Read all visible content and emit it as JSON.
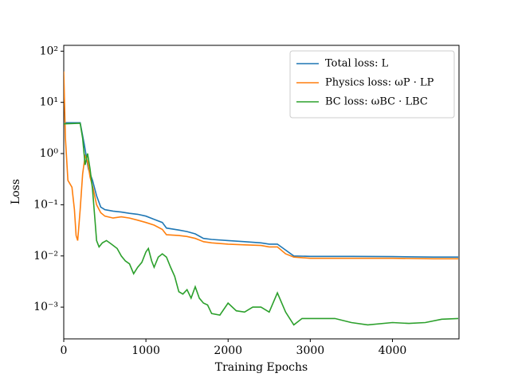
{
  "chart_data": {
    "type": "line",
    "log_y": true,
    "legend": "upper right",
    "xlabel": "Training Epochs",
    "ylabel": "Loss",
    "xlim": [
      0,
      4810
    ],
    "xticks": [
      0,
      1000,
      2000,
      3000,
      4000
    ],
    "ylim": [
      0.00024,
      130
    ],
    "yticks": [
      {
        "value": 0.001,
        "label": "10⁻³"
      },
      {
        "value": 0.01,
        "label": "10⁻²"
      },
      {
        "value": 0.1,
        "label": "10⁻¹"
      },
      {
        "value": 1,
        "label": "10⁰"
      },
      {
        "value": 10,
        "label": "10¹"
      },
      {
        "value": 100,
        "label": "10²"
      }
    ],
    "series": [
      {
        "name": "Total loss: L",
        "color": "#1f77b4",
        "x": [
          0,
          200,
          250,
          300,
          350,
          400,
          450,
          500,
          600,
          700,
          800,
          900,
          1000,
          1100,
          1200,
          1250,
          1400,
          1500,
          1600,
          1700,
          1800,
          2000,
          2200,
          2400,
          2500,
          2600,
          2700,
          2800,
          3000,
          3500,
          4000,
          4500,
          4800
        ],
        "values": [
          4,
          4,
          1.5,
          0.5,
          0.3,
          0.15,
          0.09,
          0.08,
          0.075,
          0.072,
          0.068,
          0.065,
          0.06,
          0.052,
          0.045,
          0.035,
          0.032,
          0.03,
          0.027,
          0.022,
          0.021,
          0.02,
          0.019,
          0.018,
          0.017,
          0.017,
          0.013,
          0.01,
          0.0098,
          0.0098,
          0.0097,
          0.0095,
          0.0095
        ]
      },
      {
        "name": "Physics loss: ωP · LP",
        "color": "#ff7f0e",
        "x": [
          0,
          20,
          50,
          100,
          130,
          150,
          170,
          200,
          230,
          260,
          290,
          320,
          360,
          400,
          450,
          500,
          600,
          700,
          800,
          900,
          1000,
          1100,
          1200,
          1250,
          1400,
          1500,
          1600,
          1700,
          1800,
          2000,
          2200,
          2400,
          2500,
          2600,
          2700,
          2800,
          3000,
          3500,
          4000,
          4500,
          4800
        ],
        "values": [
          40,
          2,
          0.3,
          0.22,
          0.08,
          0.025,
          0.02,
          0.08,
          0.4,
          0.9,
          0.7,
          0.35,
          0.2,
          0.1,
          0.07,
          0.06,
          0.055,
          0.058,
          0.055,
          0.05,
          0.045,
          0.04,
          0.033,
          0.026,
          0.025,
          0.024,
          0.022,
          0.019,
          0.018,
          0.017,
          0.0165,
          0.016,
          0.015,
          0.015,
          0.011,
          0.0095,
          0.009,
          0.009,
          0.009,
          0.0088,
          0.0088
        ]
      },
      {
        "name": "BC loss: ωBC · LBC",
        "color": "#2ca02c",
        "x": [
          0,
          200,
          230,
          260,
          290,
          320,
          350,
          380,
          400,
          430,
          470,
          520,
          580,
          650,
          700,
          750,
          800,
          850,
          900,
          950,
          1000,
          1030,
          1070,
          1100,
          1150,
          1200,
          1250,
          1300,
          1350,
          1400,
          1450,
          1500,
          1550,
          1600,
          1650,
          1700,
          1750,
          1800,
          1900,
          2000,
          2100,
          2200,
          2300,
          2400,
          2500,
          2600,
          2700,
          2800,
          2900,
          3000,
          3300,
          3500,
          3700,
          4000,
          4200,
          4400,
          4600,
          4800
        ],
        "values": [
          3.8,
          3.9,
          2,
          0.6,
          1.0,
          0.5,
          0.2,
          0.05,
          0.02,
          0.015,
          0.018,
          0.02,
          0.017,
          0.014,
          0.01,
          0.008,
          0.007,
          0.0045,
          0.006,
          0.0075,
          0.012,
          0.014,
          0.008,
          0.006,
          0.0095,
          0.011,
          0.0095,
          0.006,
          0.004,
          0.002,
          0.0018,
          0.0022,
          0.0015,
          0.0025,
          0.0015,
          0.0012,
          0.0011,
          0.00075,
          0.0007,
          0.0012,
          0.00085,
          0.0008,
          0.001,
          0.001,
          0.0008,
          0.0019,
          0.0008,
          0.00045,
          0.0006,
          0.0006,
          0.0006,
          0.0005,
          0.00045,
          0.0005,
          0.00048,
          0.0005,
          0.00058,
          0.0006
        ]
      }
    ]
  }
}
